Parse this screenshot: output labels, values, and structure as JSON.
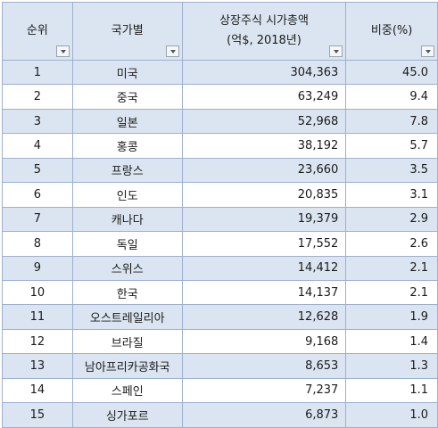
{
  "headers": {
    "rank": "순위",
    "country": "국가별",
    "cap_line1": "상장주식 시가총액",
    "cap_line2": "(억$, 2018년)",
    "share": "비중(%)"
  },
  "rows": [
    {
      "rank": "1",
      "country": "미국",
      "cap": "304,363",
      "share": "45.0"
    },
    {
      "rank": "2",
      "country": "중국",
      "cap": "63,249",
      "share": "9.4"
    },
    {
      "rank": "3",
      "country": "일본",
      "cap": "52,968",
      "share": "7.8"
    },
    {
      "rank": "4",
      "country": "홍콩",
      "cap": "38,192",
      "share": "5.7"
    },
    {
      "rank": "5",
      "country": "프랑스",
      "cap": "23,660",
      "share": "3.5"
    },
    {
      "rank": "6",
      "country": "인도",
      "cap": "20,835",
      "share": "3.1"
    },
    {
      "rank": "7",
      "country": "캐나다",
      "cap": "19,379",
      "share": "2.9"
    },
    {
      "rank": "8",
      "country": "독일",
      "cap": "17,552",
      "share": "2.6"
    },
    {
      "rank": "9",
      "country": "스위스",
      "cap": "14,412",
      "share": "2.1"
    },
    {
      "rank": "10",
      "country": "한국",
      "cap": "14,137",
      "share": "2.1"
    },
    {
      "rank": "11",
      "country": "오스트레일리아",
      "cap": "12,628",
      "share": "1.9"
    },
    {
      "rank": "12",
      "country": "브라질",
      "cap": "9,168",
      "share": "1.4"
    },
    {
      "rank": "13",
      "country": "남아프리카공화국",
      "cap": "8,653",
      "share": "1.3"
    },
    {
      "rank": "14",
      "country": "스페인",
      "cap": "7,237",
      "share": "1.1"
    },
    {
      "rank": "15",
      "country": "싱가포르",
      "cap": "6,873",
      "share": "1.0"
    }
  ]
}
